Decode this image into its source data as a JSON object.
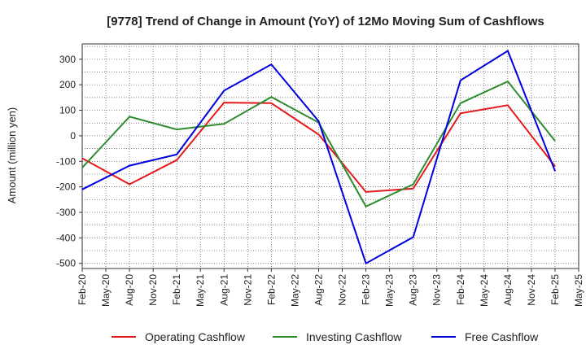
{
  "chart_data": {
    "type": "line",
    "title": "[9778]  Trend of Change in Amount (YoY) of 12Mo Moving Sum of Cashflows",
    "xlabel": "",
    "ylabel": "Amount (million yen)",
    "ylim": [
      -520,
      360
    ],
    "yticks": [
      300,
      200,
      100,
      0,
      -100,
      -200,
      -300,
      -400,
      -500
    ],
    "grid": true,
    "legend_position": "bottom",
    "categories": [
      "Feb-20",
      "May-20",
      "Aug-20",
      "Nov-20",
      "Feb-21",
      "May-21",
      "Aug-21",
      "Nov-21",
      "Feb-22",
      "May-22",
      "Aug-22",
      "Nov-22",
      "Feb-23",
      "May-23",
      "Aug-23",
      "Nov-23",
      "Feb-24",
      "May-24",
      "Aug-24",
      "Nov-24",
      "Feb-25",
      "May-25"
    ],
    "series": [
      {
        "name": "Operating Cashflow",
        "color": "#e31a1c",
        "values": [
          -88,
          null,
          -190,
          null,
          -95,
          null,
          130,
          null,
          128,
          null,
          5,
          null,
          -220,
          null,
          -207,
          null,
          88,
          null,
          120,
          null,
          -120,
          null
        ]
      },
      {
        "name": "Investing Cashflow",
        "color": "#2e8b2e",
        "values": [
          -125,
          null,
          75,
          null,
          25,
          null,
          47,
          null,
          152,
          null,
          52,
          null,
          -277,
          null,
          -190,
          null,
          128,
          null,
          213,
          null,
          -20,
          null
        ]
      },
      {
        "name": "Free Cashflow",
        "color": "#0000dd",
        "values": [
          -210,
          null,
          -117,
          null,
          -73,
          null,
          177,
          null,
          280,
          null,
          57,
          null,
          -500,
          null,
          -397,
          null,
          217,
          null,
          333,
          null,
          -138,
          null
        ]
      }
    ]
  }
}
